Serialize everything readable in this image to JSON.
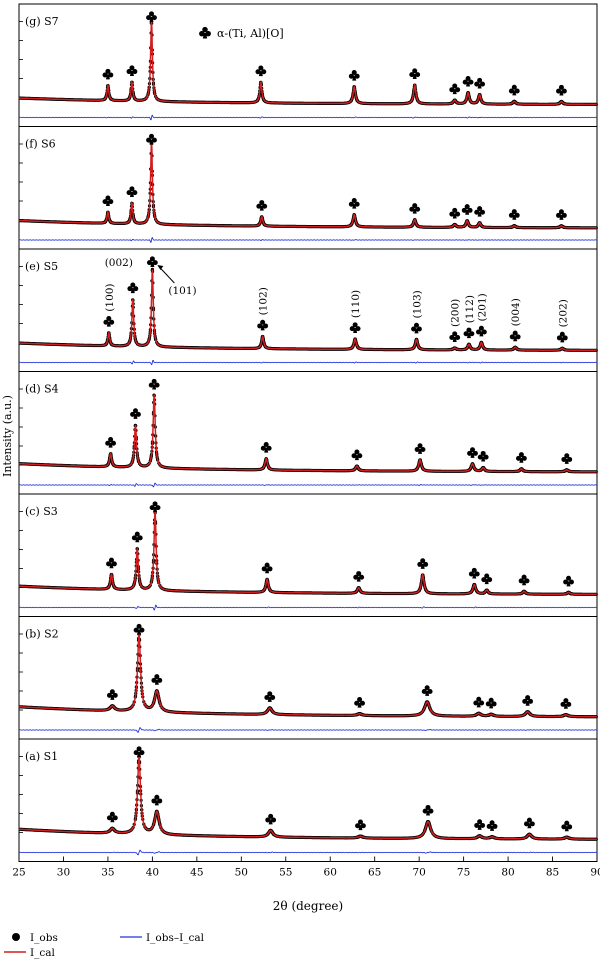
{
  "chart_data": {
    "type": "line",
    "xlabel": "2θ (degree)",
    "ylabel": "Intensity (a.u.)",
    "xlim": [
      25,
      90
    ],
    "xticks": [
      25,
      30,
      35,
      40,
      45,
      50,
      55,
      60,
      65,
      70,
      75,
      80,
      85,
      90
    ],
    "marker_legend": "α-(Ti, Al)[O]",
    "legend": {
      "obs": "I_obs",
      "cal": "I_cal",
      "diff": "I_obs–I_cal"
    },
    "colors": {
      "obs": "#000000",
      "cal": "#d21e1e",
      "diff": "#2233dd",
      "marker": "#000000"
    },
    "panels": [
      {
        "label": "(g) S7",
        "bg_start": 0.1,
        "bg_end": 0.03,
        "peaks": [
          {
            "x": 35.0,
            "h": 0.16,
            "w": 0.12
          },
          {
            "x": 37.7,
            "h": 0.2,
            "w": 0.12
          },
          {
            "x": 39.9,
            "h": 0.85,
            "w": 0.12
          },
          {
            "x": 52.2,
            "h": 0.22,
            "w": 0.14
          },
          {
            "x": 62.7,
            "h": 0.18,
            "w": 0.16
          },
          {
            "x": 69.5,
            "h": 0.2,
            "w": 0.16
          },
          {
            "x": 74.0,
            "h": 0.04,
            "w": 0.18
          },
          {
            "x": 75.5,
            "h": 0.12,
            "w": 0.16
          },
          {
            "x": 76.8,
            "h": 0.1,
            "w": 0.16
          },
          {
            "x": 80.7,
            "h": 0.03,
            "w": 0.18
          },
          {
            "x": 86.0,
            "h": 0.03,
            "w": 0.18
          }
        ],
        "markers": [
          35.0,
          37.7,
          39.9,
          52.2,
          62.7,
          69.5,
          74.0,
          75.5,
          76.8,
          80.7,
          86.0
        ]
      },
      {
        "label": "(f) S6",
        "bg_start": 0.1,
        "bg_end": 0.02,
        "peaks": [
          {
            "x": 35.0,
            "h": 0.12,
            "w": 0.12
          },
          {
            "x": 37.7,
            "h": 0.22,
            "w": 0.12
          },
          {
            "x": 39.9,
            "h": 0.88,
            "w": 0.12
          },
          {
            "x": 52.3,
            "h": 0.1,
            "w": 0.14
          },
          {
            "x": 62.7,
            "h": 0.13,
            "w": 0.16
          },
          {
            "x": 69.5,
            "h": 0.08,
            "w": 0.16
          },
          {
            "x": 74.0,
            "h": 0.03,
            "w": 0.18
          },
          {
            "x": 75.4,
            "h": 0.07,
            "w": 0.16
          },
          {
            "x": 76.8,
            "h": 0.05,
            "w": 0.16
          },
          {
            "x": 80.7,
            "h": 0.02,
            "w": 0.18
          },
          {
            "x": 86.0,
            "h": 0.02,
            "w": 0.18
          }
        ],
        "markers": [
          35.0,
          37.7,
          39.9,
          52.3,
          62.7,
          69.5,
          74.0,
          75.4,
          76.8,
          80.7,
          86.0
        ]
      },
      {
        "label": "(e) S5",
        "bg_start": 0.1,
        "bg_end": 0.02,
        "peaks": [
          {
            "x": 35.1,
            "h": 0.14,
            "w": 0.12
          },
          {
            "x": 37.8,
            "h": 0.5,
            "w": 0.12
          },
          {
            "x": 40.0,
            "h": 0.82,
            "w": 0.12
          },
          {
            "x": 52.4,
            "h": 0.13,
            "w": 0.14
          },
          {
            "x": 62.8,
            "h": 0.11,
            "w": 0.16
          },
          {
            "x": 69.7,
            "h": 0.11,
            "w": 0.16
          },
          {
            "x": 74.0,
            "h": 0.02,
            "w": 0.18
          },
          {
            "x": 75.6,
            "h": 0.06,
            "w": 0.16
          },
          {
            "x": 77.0,
            "h": 0.08,
            "w": 0.16
          },
          {
            "x": 80.8,
            "h": 0.03,
            "w": 0.18
          },
          {
            "x": 86.1,
            "h": 0.02,
            "w": 0.18
          }
        ],
        "markers": [
          35.1,
          37.8,
          40.0,
          52.4,
          62.8,
          69.7,
          74.0,
          75.6,
          77.0,
          80.8,
          86.1
        ],
        "hkl": [
          {
            "x": 35.1,
            "text": "(100)",
            "vertical": true
          },
          {
            "x": 52.4,
            "text": "(102)",
            "vertical": true
          },
          {
            "x": 62.8,
            "text": "(110)",
            "vertical": true
          },
          {
            "x": 69.7,
            "text": "(103)",
            "vertical": true
          },
          {
            "x": 74.0,
            "text": "(200)",
            "vertical": true
          },
          {
            "x": 75.6,
            "text": "(112)",
            "vertical": true
          },
          {
            "x": 77.0,
            "text": "(201)",
            "vertical": true
          },
          {
            "x": 80.8,
            "text": "(004)",
            "vertical": true
          },
          {
            "x": 86.1,
            "text": "(202)",
            "vertical": true
          },
          {
            "x": 37.8,
            "text": "(002)",
            "vertical": false
          },
          {
            "x": 40.0,
            "text": "(101)",
            "vertical": false,
            "arrow": true
          }
        ]
      },
      {
        "label": "(d) S4",
        "bg_start": 0.12,
        "bg_end": 0.03,
        "peaks": [
          {
            "x": 35.3,
            "h": 0.14,
            "w": 0.14
          },
          {
            "x": 38.1,
            "h": 0.45,
            "w": 0.14
          },
          {
            "x": 40.2,
            "h": 0.78,
            "w": 0.14
          },
          {
            "x": 52.8,
            "h": 0.12,
            "w": 0.16
          },
          {
            "x": 63.0,
            "h": 0.05,
            "w": 0.18
          },
          {
            "x": 70.1,
            "h": 0.12,
            "w": 0.18
          },
          {
            "x": 76.0,
            "h": 0.08,
            "w": 0.18
          },
          {
            "x": 77.2,
            "h": 0.04,
            "w": 0.18
          },
          {
            "x": 81.5,
            "h": 0.03,
            "w": 0.18
          },
          {
            "x": 86.6,
            "h": 0.02,
            "w": 0.18
          }
        ],
        "markers": [
          35.3,
          38.1,
          40.2,
          52.8,
          63.0,
          70.1,
          76.0,
          77.2,
          81.5,
          86.6
        ]
      },
      {
        "label": "(c) S3",
        "bg_start": 0.12,
        "bg_end": 0.03,
        "peaks": [
          {
            "x": 35.4,
            "h": 0.16,
            "w": 0.14
          },
          {
            "x": 38.3,
            "h": 0.44,
            "w": 0.14
          },
          {
            "x": 40.3,
            "h": 0.84,
            "w": 0.14
          },
          {
            "x": 52.9,
            "h": 0.14,
            "w": 0.16
          },
          {
            "x": 63.2,
            "h": 0.06,
            "w": 0.18
          },
          {
            "x": 70.4,
            "h": 0.2,
            "w": 0.18
          },
          {
            "x": 76.2,
            "h": 0.1,
            "w": 0.18
          },
          {
            "x": 77.6,
            "h": 0.04,
            "w": 0.18
          },
          {
            "x": 81.8,
            "h": 0.03,
            "w": 0.18
          },
          {
            "x": 86.8,
            "h": 0.02,
            "w": 0.18
          }
        ],
        "markers": [
          35.4,
          38.3,
          40.3,
          52.9,
          63.2,
          70.4,
          76.2,
          77.6,
          81.8,
          86.8
        ]
      },
      {
        "label": "(b) S2",
        "bg_start": 0.14,
        "bg_end": 0.03,
        "peaks": [
          {
            "x": 35.5,
            "h": 0.05,
            "w": 0.3
          },
          {
            "x": 38.5,
            "h": 0.82,
            "w": 0.2
          },
          {
            "x": 40.5,
            "h": 0.22,
            "w": 0.3
          },
          {
            "x": 53.2,
            "h": 0.07,
            "w": 0.3
          },
          {
            "x": 63.3,
            "h": 0.02,
            "w": 0.3
          },
          {
            "x": 70.9,
            "h": 0.15,
            "w": 0.35
          },
          {
            "x": 76.7,
            "h": 0.03,
            "w": 0.3
          },
          {
            "x": 78.1,
            "h": 0.02,
            "w": 0.3
          },
          {
            "x": 82.2,
            "h": 0.05,
            "w": 0.3
          },
          {
            "x": 86.5,
            "h": 0.02,
            "w": 0.3
          }
        ],
        "markers": [
          35.5,
          38.5,
          40.5,
          53.2,
          63.3,
          70.9,
          76.7,
          78.1,
          82.2,
          86.5
        ]
      },
      {
        "label": "(a) S1",
        "bg_start": 0.14,
        "bg_end": 0.03,
        "peaks": [
          {
            "x": 35.5,
            "h": 0.05,
            "w": 0.3
          },
          {
            "x": 38.5,
            "h": 0.82,
            "w": 0.2
          },
          {
            "x": 40.5,
            "h": 0.24,
            "w": 0.3
          },
          {
            "x": 53.3,
            "h": 0.07,
            "w": 0.3
          },
          {
            "x": 63.4,
            "h": 0.02,
            "w": 0.3
          },
          {
            "x": 71.0,
            "h": 0.18,
            "w": 0.35
          },
          {
            "x": 76.8,
            "h": 0.03,
            "w": 0.3
          },
          {
            "x": 78.2,
            "h": 0.02,
            "w": 0.3
          },
          {
            "x": 82.4,
            "h": 0.05,
            "w": 0.3
          },
          {
            "x": 86.6,
            "h": 0.02,
            "w": 0.3
          }
        ],
        "markers": [
          35.5,
          38.5,
          40.5,
          53.3,
          63.4,
          71.0,
          76.8,
          78.2,
          82.4,
          86.6
        ]
      }
    ]
  }
}
